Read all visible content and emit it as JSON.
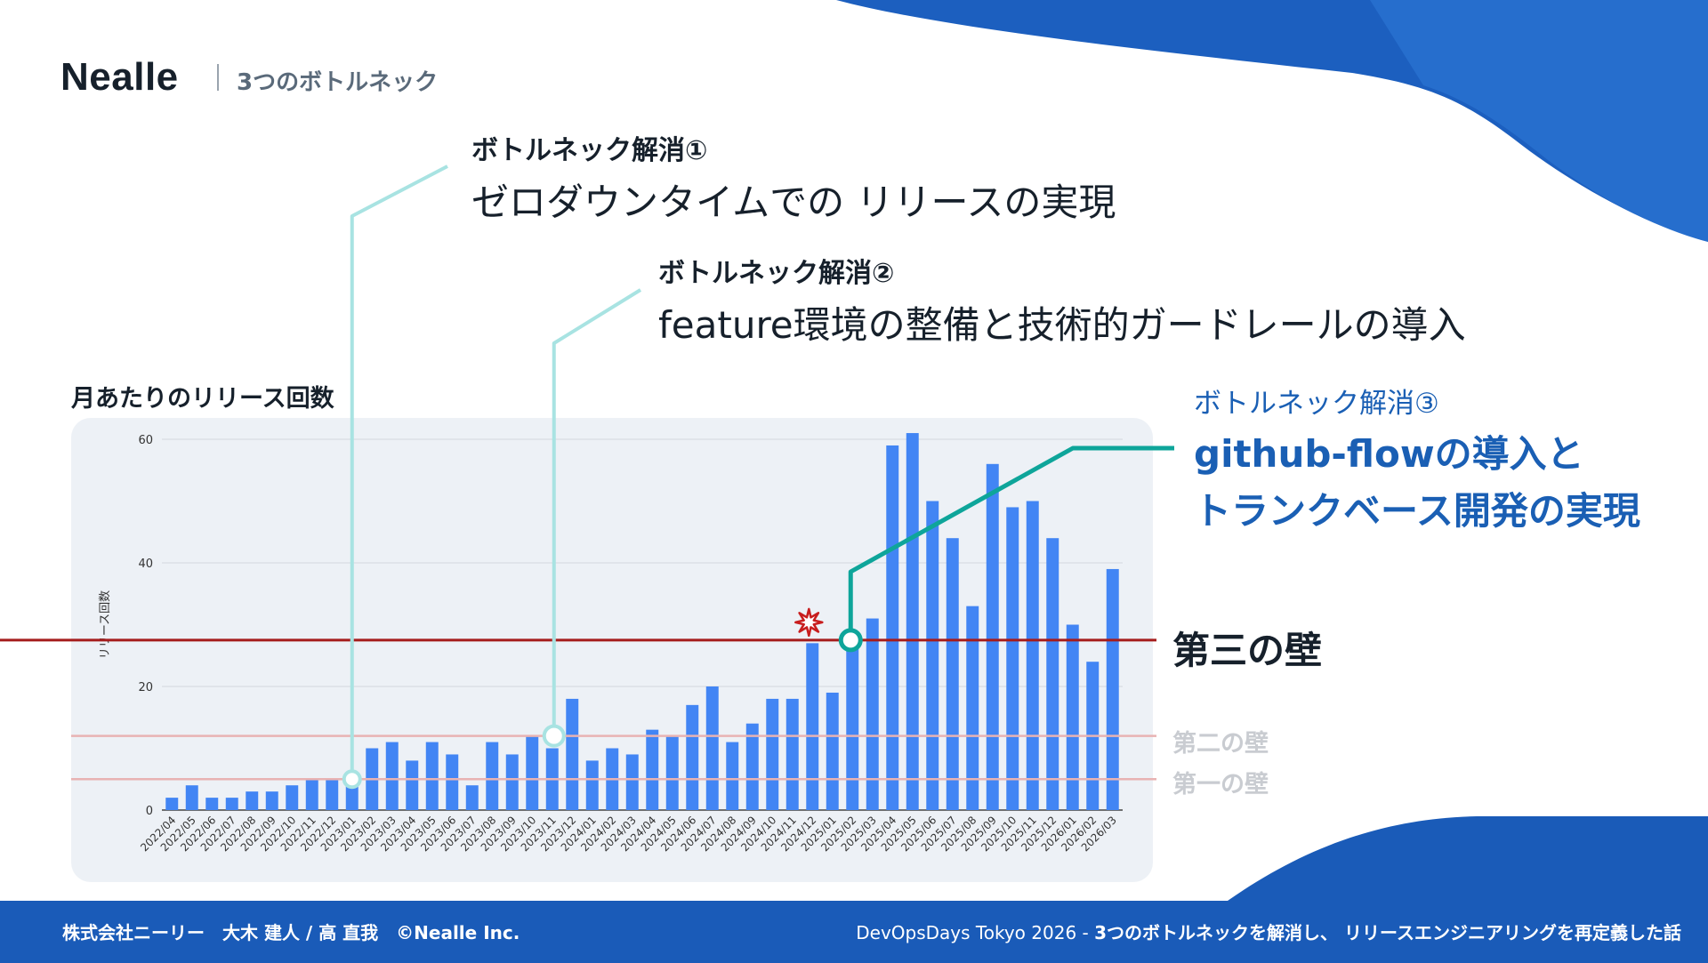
{
  "header": {
    "brand": "Nealle",
    "subtitle": "3つのボトルネック"
  },
  "annotations": [
    {
      "heading": "ボトルネック解消①",
      "body": "ゼロダウンタイムでの リリースの実現"
    },
    {
      "heading": "ボトルネック解消②",
      "body": "feature環境の整備と技術的ガードレールの導入"
    },
    {
      "heading": "ボトルネック解消③",
      "body_line1": "github-flowの導入と",
      "body_line2": "トランクベース開発の実現"
    }
  ],
  "walls": {
    "third": {
      "label": "第三の壁",
      "value": 27.5
    },
    "second": {
      "label": "第二の壁",
      "value": 12
    },
    "first": {
      "label": "第一の壁",
      "value": 5
    },
    "colors": {
      "third": "#a51c1c",
      "minor": "#e8b3b3"
    }
  },
  "markers": {
    "circles_at": [
      "2023/01",
      "2023/11",
      "2025/02"
    ],
    "burst_at": "2024/12",
    "colors": {
      "light": "#a8e3e2",
      "dark": "#0ea59a",
      "burst": "#c81e1e"
    }
  },
  "chart_data": {
    "type": "bar",
    "title": "月あたりのリリース回数",
    "ylabel": "リリース回数",
    "xlabel": "",
    "ylim": [
      0,
      60
    ],
    "yticks": [
      0,
      20,
      40,
      60
    ],
    "bar_color": "#4285f4",
    "grid": true,
    "categories": [
      "2022/04",
      "2022/05",
      "2022/06",
      "2022/07",
      "2022/08",
      "2022/09",
      "2022/10",
      "2022/11",
      "2022/12",
      "2023/01",
      "2023/02",
      "2023/03",
      "2023/04",
      "2023/05",
      "2023/06",
      "2023/07",
      "2023/08",
      "2023/09",
      "2023/10",
      "2023/11",
      "2023/12",
      "2024/01",
      "2024/02",
      "2024/03",
      "2024/04",
      "2024/05",
      "2024/06",
      "2024/07",
      "2024/08",
      "2024/09",
      "2024/10",
      "2024/11",
      "2024/12",
      "2025/01",
      "2025/02",
      "2025/03",
      "2025/04",
      "2025/05",
      "2025/06",
      "2025/07",
      "2025/08",
      "2025/09",
      "2025/10",
      "2025/11",
      "2025/12",
      "2026/01",
      "2026/02",
      "2026/03"
    ],
    "values": [
      2,
      4,
      2,
      2,
      3,
      3,
      4,
      5,
      5,
      4,
      10,
      11,
      8,
      11,
      9,
      4,
      11,
      9,
      12,
      10,
      18,
      8,
      10,
      9,
      13,
      12,
      17,
      20,
      11,
      14,
      18,
      18,
      27,
      19,
      28,
      31,
      59,
      61,
      50,
      44,
      33,
      56,
      49,
      50,
      44,
      30,
      24,
      39
    ]
  },
  "footer": {
    "left": "株式会社ニーリー　大木 建人 / 高 直我　©Nealle Inc.",
    "right_event": "DevOpsDays Tokyo 2026 - ",
    "right_title": "3つのボトルネックを解消し、 リリースエンジニアリングを再定義した話"
  }
}
